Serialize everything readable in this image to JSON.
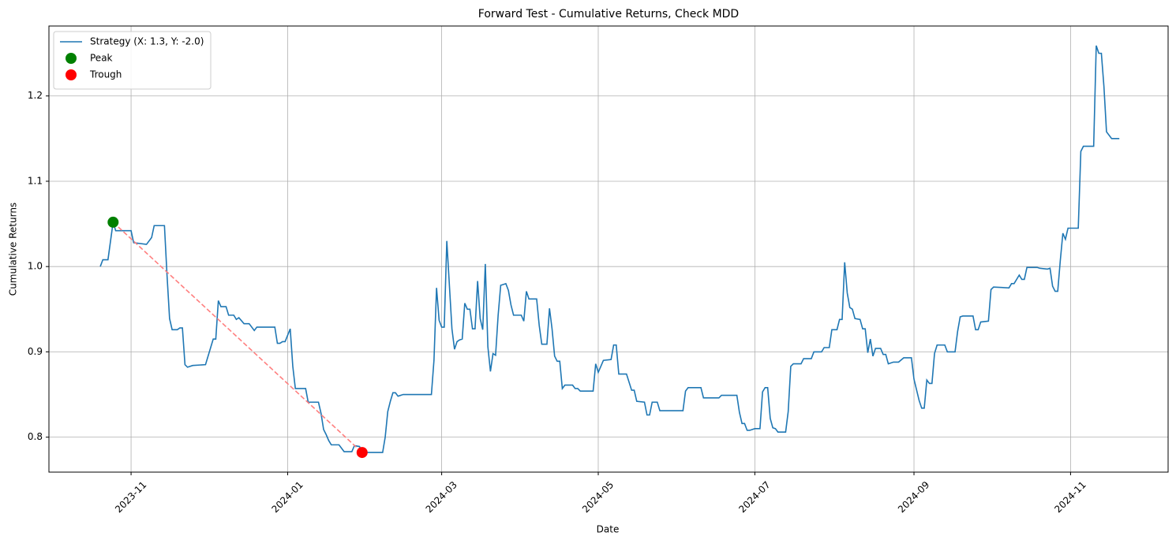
{
  "chart_data": {
    "type": "line",
    "title": "Forward Test - Cumulative Returns, Check MDD",
    "xlabel": "Date",
    "ylabel": "Cumulative Returns",
    "xlim": [
      "2023-09-30",
      "2024-12-09"
    ],
    "ylim": [
      0.759,
      1.282
    ],
    "xticks": [
      {
        "value": "2023-11-01",
        "label": "2023-11"
      },
      {
        "value": "2024-01-01",
        "label": "2024-01"
      },
      {
        "value": "2024-03-01",
        "label": "2024-03"
      },
      {
        "value": "2024-05-01",
        "label": "2024-05"
      },
      {
        "value": "2024-07-01",
        "label": "2024-07"
      },
      {
        "value": "2024-09-01",
        "label": "2024-09"
      },
      {
        "value": "2024-11-01",
        "label": "2024-11"
      }
    ],
    "yticks": [
      0.8,
      0.9,
      {
        "value": 1,
        "label": "1.0"
      },
      1.1,
      1.2
    ],
    "grid": true,
    "legend": "upper left",
    "drawdown_color": "#ff7f7f",
    "x": [
      "2023-10-20",
      "2023-10-21",
      "2023-10-23",
      "2023-10-25",
      "2023-10-26",
      "2023-11-01",
      "2023-11-02",
      "2023-11-07",
      "2023-11-09",
      "2023-11-10",
      "2023-11-14",
      "2023-11-15",
      "2023-11-16",
      "2023-11-17",
      "2023-11-19",
      "2023-11-20",
      "2023-11-21",
      "2023-11-22",
      "2023-11-23",
      "2023-11-25",
      "2023-11-30",
      "2023-12-02",
      "2023-12-03",
      "2023-12-04",
      "2023-12-05",
      "2023-12-06",
      "2023-12-08",
      "2023-12-09",
      "2023-12-11",
      "2023-12-12",
      "2023-12-13",
      "2023-12-15",
      "2023-12-17",
      "2023-12-19",
      "2023-12-20",
      "2023-12-27",
      "2023-12-28",
      "2023-12-29",
      "2023-12-30",
      "2023-12-31",
      "2024-01-02",
      "2024-01-03",
      "2024-01-04",
      "2024-01-08",
      "2024-01-09",
      "2024-01-13",
      "2024-01-14",
      "2024-01-15",
      "2024-01-16",
      "2024-01-17",
      "2024-01-18",
      "2024-01-21",
      "2024-01-23",
      "2024-01-26",
      "2024-01-27",
      "2024-01-29",
      "2024-01-30",
      "2024-02-07",
      "2024-02-08",
      "2024-02-09",
      "2024-02-10",
      "2024-02-11",
      "2024-02-12",
      "2024-02-13",
      "2024-02-15",
      "2024-02-26",
      "2024-02-27",
      "2024-02-28",
      "2024-02-29",
      "2024-03-01",
      "2024-03-02",
      "2024-03-03",
      "2024-03-05",
      "2024-03-06",
      "2024-03-07",
      "2024-03-08",
      "2024-03-09",
      "2024-03-10",
      "2024-03-11",
      "2024-03-12",
      "2024-03-13",
      "2024-03-14",
      "2024-03-15",
      "2024-03-16",
      "2024-03-17",
      "2024-03-18",
      "2024-03-19",
      "2024-03-20",
      "2024-03-21",
      "2024-03-22",
      "2024-03-23",
      "2024-03-24",
      "2024-03-26",
      "2024-03-27",
      "2024-03-28",
      "2024-03-29",
      "2024-04-01",
      "2024-04-02",
      "2024-04-03",
      "2024-04-04",
      "2024-04-07",
      "2024-04-08",
      "2024-04-09",
      "2024-04-11",
      "2024-04-12",
      "2024-04-13",
      "2024-04-14",
      "2024-04-15",
      "2024-04-16",
      "2024-04-17",
      "2024-04-18",
      "2024-04-21",
      "2024-04-22",
      "2024-04-23",
      "2024-04-24",
      "2024-04-29",
      "2024-04-30",
      "2024-05-01",
      "2024-05-03",
      "2024-05-06",
      "2024-05-07",
      "2024-05-08",
      "2024-05-09",
      "2024-05-12",
      "2024-05-14",
      "2024-05-15",
      "2024-05-16",
      "2024-05-19",
      "2024-05-20",
      "2024-05-21",
      "2024-05-22",
      "2024-05-24",
      "2024-05-25",
      "2024-06-03",
      "2024-06-04",
      "2024-06-05",
      "2024-06-10",
      "2024-06-11",
      "2024-06-17",
      "2024-06-18",
      "2024-06-24",
      "2024-06-25",
      "2024-06-26",
      "2024-06-27",
      "2024-06-28",
      "2024-06-29",
      "2024-07-01",
      "2024-07-03",
      "2024-07-04",
      "2024-07-05",
      "2024-07-06",
      "2024-07-07",
      "2024-07-08",
      "2024-07-09",
      "2024-07-10",
      "2024-07-13",
      "2024-07-14",
      "2024-07-15",
      "2024-07-16",
      "2024-07-19",
      "2024-07-20",
      "2024-07-23",
      "2024-07-24",
      "2024-07-27",
      "2024-07-28",
      "2024-07-30",
      "2024-07-31",
      "2024-08-02",
      "2024-08-03",
      "2024-08-04",
      "2024-08-05",
      "2024-08-06",
      "2024-08-07",
      "2024-08-08",
      "2024-08-09",
      "2024-08-11",
      "2024-08-12",
      "2024-08-13",
      "2024-08-14",
      "2024-08-15",
      "2024-08-16",
      "2024-08-17",
      "2024-08-19",
      "2024-08-20",
      "2024-08-21",
      "2024-08-22",
      "2024-08-23",
      "2024-08-24",
      "2024-08-26",
      "2024-08-28",
      "2024-08-31",
      "2024-09-01",
      "2024-09-03",
      "2024-09-04",
      "2024-09-05",
      "2024-09-06",
      "2024-09-07",
      "2024-09-08",
      "2024-09-09",
      "2024-09-10",
      "2024-09-13",
      "2024-09-14",
      "2024-09-17",
      "2024-09-18",
      "2024-09-19",
      "2024-09-20",
      "2024-09-24",
      "2024-09-25",
      "2024-09-26",
      "2024-09-27",
      "2024-09-30",
      "2024-10-01",
      "2024-10-02",
      "2024-10-08",
      "2024-10-09",
      "2024-10-10",
      "2024-10-12",
      "2024-10-13",
      "2024-10-14",
      "2024-10-15",
      "2024-10-19",
      "2024-10-20",
      "2024-10-23",
      "2024-10-24",
      "2024-10-25",
      "2024-10-26",
      "2024-10-27",
      "2024-10-28",
      "2024-10-29",
      "2024-10-30",
      "2024-10-31",
      "2024-11-04",
      "2024-11-05",
      "2024-11-06",
      "2024-11-10",
      "2024-11-11",
      "2024-11-12",
      "2024-11-13",
      "2024-11-14",
      "2024-11-15",
      "2024-11-17",
      "2024-11-20"
    ],
    "series": [
      {
        "name": "Strategy (X: 1.3, Y: -2.0)",
        "color": "#1f77b4",
        "values": [
          1.0,
          1.008,
          1.008,
          1.052,
          1.042,
          1.042,
          1.028,
          1.026,
          1.034,
          1.048,
          1.048,
          0.99,
          0.939,
          0.926,
          0.926,
          0.928,
          0.928,
          0.885,
          0.882,
          0.884,
          0.885,
          0.905,
          0.915,
          0.915,
          0.96,
          0.953,
          0.953,
          0.943,
          0.943,
          0.938,
          0.94,
          0.933,
          0.933,
          0.925,
          0.929,
          0.929,
          0.91,
          0.91,
          0.912,
          0.912,
          0.927,
          0.883,
          0.857,
          0.857,
          0.841,
          0.841,
          0.828,
          0.809,
          0.803,
          0.796,
          0.791,
          0.791,
          0.783,
          0.783,
          0.79,
          0.789,
          0.782,
          0.782,
          0.8,
          0.83,
          0.842,
          0.852,
          0.852,
          0.848,
          0.85,
          0.85,
          0.89,
          0.975,
          0.937,
          0.929,
          0.929,
          1.03,
          0.927,
          0.903,
          0.912,
          0.914,
          0.915,
          0.957,
          0.95,
          0.95,
          0.927,
          0.927,
          0.983,
          0.939,
          0.926,
          1.003,
          0.906,
          0.877,
          0.898,
          0.896,
          0.943,
          0.978,
          0.98,
          0.972,
          0.955,
          0.943,
          0.943,
          0.936,
          0.971,
          0.962,
          0.962,
          0.931,
          0.909,
          0.909,
          0.951,
          0.927,
          0.895,
          0.889,
          0.889,
          0.857,
          0.861,
          0.861,
          0.857,
          0.857,
          0.854,
          0.854,
          0.886,
          0.876,
          0.89,
          0.891,
          0.908,
          0.908,
          0.874,
          0.874,
          0.855,
          0.855,
          0.842,
          0.841,
          0.826,
          0.826,
          0.841,
          0.841,
          0.831,
          0.831,
          0.854,
          0.858,
          0.858,
          0.846,
          0.846,
          0.849,
          0.849,
          0.829,
          0.816,
          0.816,
          0.808,
          0.808,
          0.81,
          0.81,
          0.853,
          0.858,
          0.858,
          0.822,
          0.811,
          0.81,
          0.806,
          0.806,
          0.83,
          0.883,
          0.886,
          0.886,
          0.892,
          0.892,
          0.9,
          0.9,
          0.905,
          0.905,
          0.926,
          0.926,
          0.938,
          0.938,
          1.005,
          0.969,
          0.952,
          0.95,
          0.939,
          0.938,
          0.927,
          0.927,
          0.899,
          0.915,
          0.895,
          0.904,
          0.904,
          0.897,
          0.897,
          0.886,
          0.887,
          0.888,
          0.888,
          0.893,
          0.893,
          0.868,
          0.843,
          0.834,
          0.834,
          0.867,
          0.863,
          0.863,
          0.898,
          0.908,
          0.908,
          0.9,
          0.9,
          0.924,
          0.941,
          0.942,
          0.942,
          0.926,
          0.926,
          0.935,
          0.936,
          0.973,
          0.976,
          0.975,
          0.98,
          0.98,
          0.99,
          0.985,
          0.985,
          0.999,
          0.999,
          0.998,
          0.997,
          0.998,
          0.977,
          0.971,
          0.971,
          1.007,
          1.039,
          1.032,
          1.045,
          1.045,
          1.135,
          1.141,
          1.141,
          1.259,
          1.25,
          1.25,
          1.211,
          1.158,
          1.15,
          1.15
        ]
      }
    ],
    "points": [
      {
        "name": "Peak",
        "color": "#008000",
        "x": "2023-10-25",
        "y": 1.052
      },
      {
        "name": "Trough",
        "color": "#ff0000",
        "x": "2024-01-30",
        "y": 0.782
      }
    ]
  }
}
